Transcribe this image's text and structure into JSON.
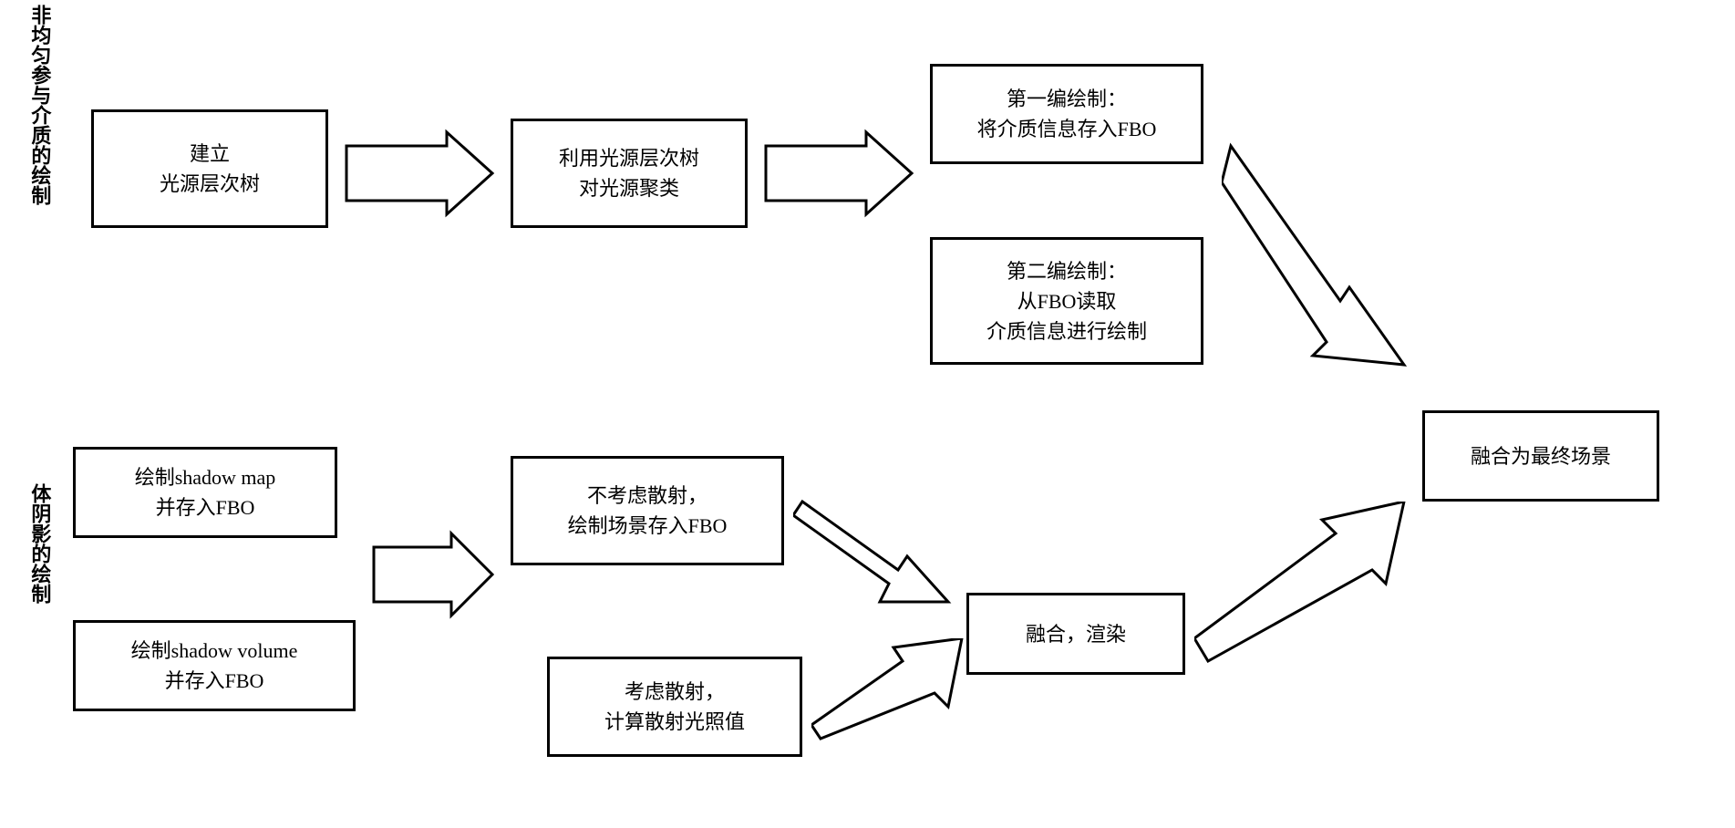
{
  "labels": {
    "top": "非均匀参与介质的绘制",
    "bottom": "体阴影的绘制"
  },
  "boxes": {
    "a1": "建立\n光源层次树",
    "a2": "利用光源层次树\n对光源聚类",
    "a3": "第一编绘制：\n将介质信息存入FBO",
    "a4": "第二编绘制：\n从FBO读取\n介质信息进行绘制",
    "b1": "绘制shadow map\n并存入FBO",
    "b2": "绘制shadow volume\n并存入FBO",
    "b3": "不考虑散射，\n绘制场景存入FBO",
    "b4": "考虑散射，\n计算散射光照值",
    "b5": "融合，渲染",
    "final": "融合为最终场景"
  },
  "style": {
    "border_color": "#000000",
    "bg_color": "#ffffff",
    "font_size": 22,
    "border_width": 3
  }
}
